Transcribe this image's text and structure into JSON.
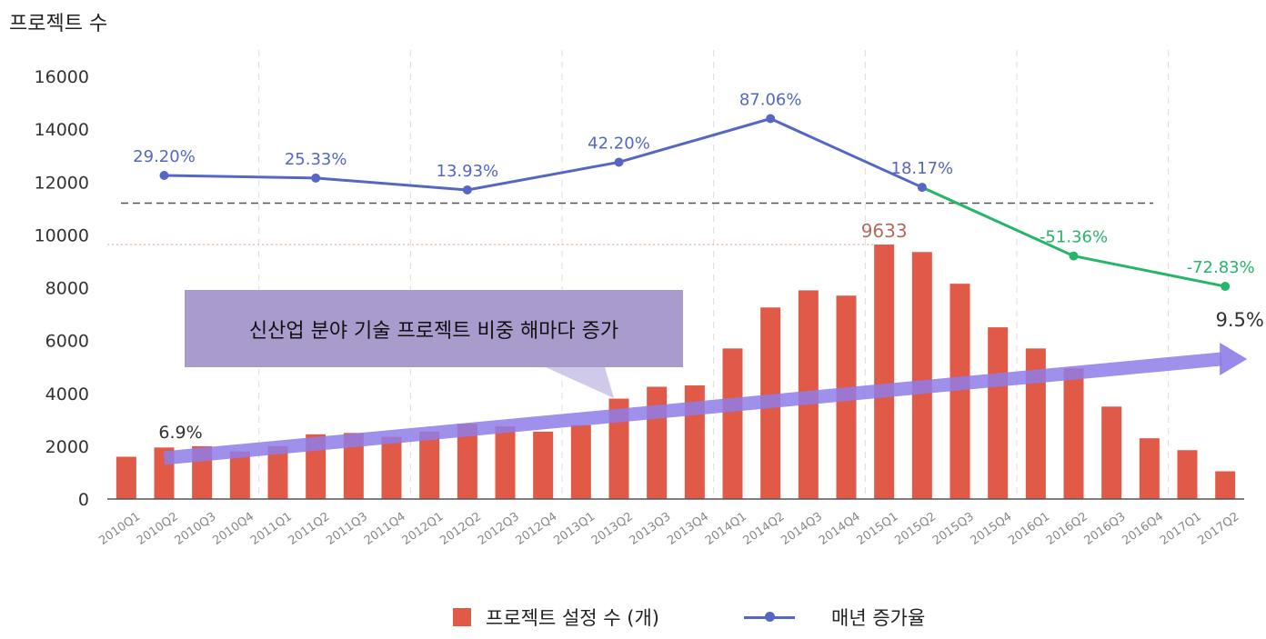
{
  "chart_data": {
    "type": "bar",
    "ylabel": "프로젝트 수",
    "ylim": [
      0,
      16000
    ],
    "yticks": [
      0,
      2000,
      4000,
      6000,
      8000,
      10000,
      12000,
      14000,
      16000
    ],
    "categories": [
      "2010Q1",
      "2010Q2",
      "2010Q3",
      "2010Q4",
      "2011Q1",
      "2011Q2",
      "2011Q3",
      "2011Q4",
      "2012Q1",
      "2012Q2",
      "2012Q3",
      "2012Q4",
      "2013Q1",
      "2013Q2",
      "2013Q3",
      "2013Q4",
      "2014Q1",
      "2014Q2",
      "2014Q3",
      "2014Q4",
      "2015Q1",
      "2015Q2",
      "2015Q3",
      "2015Q4",
      "2016Q1",
      "2016Q2",
      "2016Q3",
      "2016Q4",
      "2017Q1",
      "2017Q2"
    ],
    "series": [
      {
        "name": "프로젝트 설정 수 (개)",
        "type": "bar",
        "color": "#e05a47",
        "values": [
          1600,
          1950,
          2000,
          1800,
          2000,
          2450,
          2500,
          2350,
          2550,
          2850,
          2750,
          2550,
          2800,
          3800,
          4250,
          4300,
          5700,
          7250,
          7900,
          7700,
          9633,
          9350,
          8150,
          6500,
          5700,
          4950,
          3500,
          2300,
          1850,
          1050
        ]
      },
      {
        "name": "매년 증가율",
        "type": "line",
        "color": "#5566c4",
        "decline_color": "#27b56a",
        "points": [
          {
            "category": "2010Q2",
            "label": "29.20%",
            "y": 12250
          },
          {
            "category": "2011Q2",
            "label": "25.33%",
            "y": 12150
          },
          {
            "category": "2012Q2",
            "label": "13.93%",
            "y": 11700
          },
          {
            "category": "2013Q2",
            "label": "42.20%",
            "y": 12750
          },
          {
            "category": "2014Q2",
            "label": "87.06%",
            "y": 14400
          },
          {
            "category": "2015Q2",
            "label": "18.17%",
            "y": 11800
          },
          {
            "category": "2016Q2",
            "label": "-51.36%",
            "y": 9200
          },
          {
            "category": "2017Q2",
            "label": "-72.83%",
            "y": 8050
          }
        ]
      }
    ],
    "peak_label": "9633",
    "peak_reference_y": 9633,
    "dashed_reference_y": 11200,
    "trend": {
      "start_category": "2010Q2",
      "start_value": 1550,
      "end_category": "2017Q2",
      "end_value": 5300,
      "start_label": "6.9%",
      "end_label": "9.5%",
      "color": "#8e7ce8"
    },
    "callout": "신산업 분야 기술  프로젝트 비중 해마다 증가",
    "legend": {
      "bar": "프로젝트 설정 수 (개)",
      "line": "매년 증가율"
    },
    "legend_position": "bottom"
  }
}
